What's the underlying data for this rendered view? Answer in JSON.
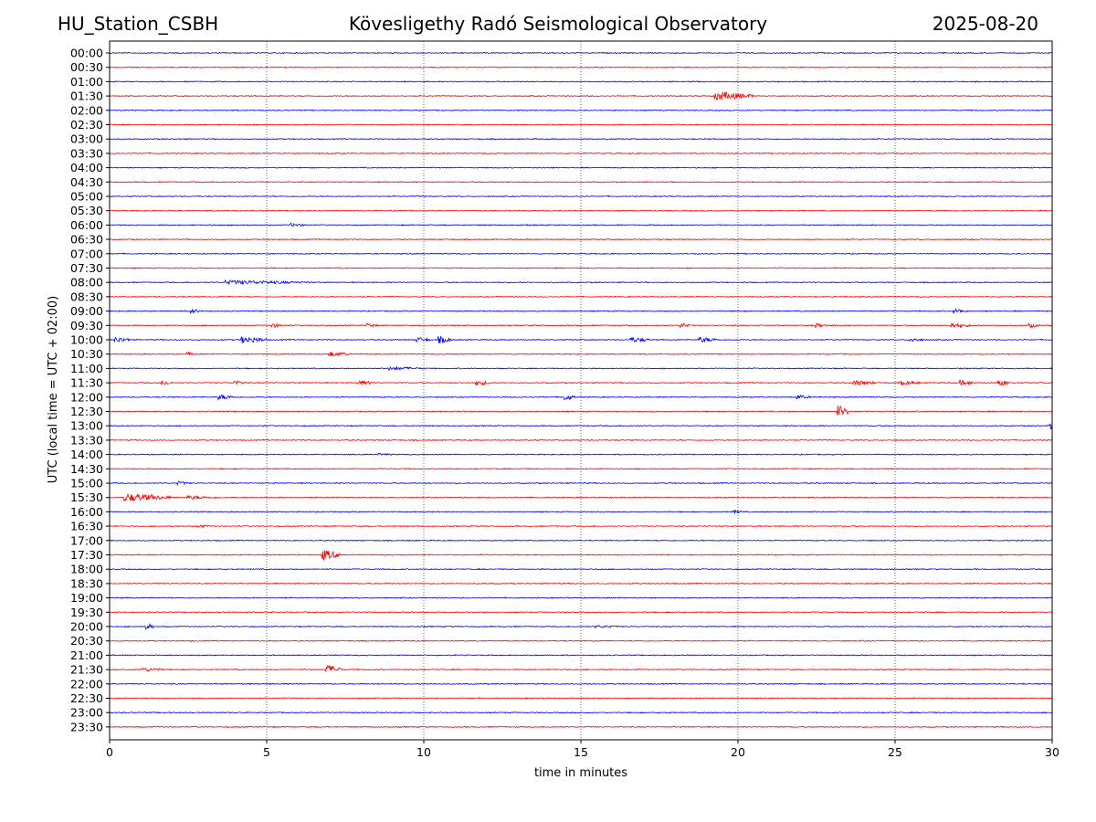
{
  "header": {
    "station": "HU_Station_CSBH",
    "observatory": "Kövesligethy Radó Seismological Observatory",
    "date": "2025-08-20"
  },
  "chart_data": {
    "type": "line",
    "xlabel": "time in minutes",
    "ylabel": "UTC (local time = UTC + 02:00)",
    "xlim": [
      0,
      30
    ],
    "xticks": [
      "0",
      "5",
      "10",
      "15",
      "20",
      "25",
      "30"
    ],
    "grid": "vertical dotted lines at every 5 minutes",
    "row_labels": [
      "00:00",
      "00:30",
      "01:00",
      "01:30",
      "02:00",
      "02:30",
      "03:00",
      "03:30",
      "04:00",
      "04:30",
      "05:00",
      "05:30",
      "06:00",
      "06:30",
      "07:00",
      "07:30",
      "08:00",
      "08:30",
      "09:00",
      "09:30",
      "10:00",
      "10:30",
      "11:00",
      "11:30",
      "12:00",
      "12:30",
      "13:00",
      "13:30",
      "14:00",
      "14:30",
      "15:00",
      "15:30",
      "16:00",
      "16:30",
      "17:00",
      "17:30",
      "18:00",
      "18:30",
      "19:00",
      "19:30",
      "20:00",
      "20:30",
      "21:00",
      "21:30",
      "22:00",
      "22:30",
      "23:00",
      "23:30"
    ],
    "trace_colors": [
      "#0000ff",
      "#ff0000"
    ],
    "events": [
      {
        "row": "01:30",
        "t": 19.3,
        "amp": 5,
        "dur": 1.2
      },
      {
        "row": "06:00",
        "t": 5.8,
        "amp": 2,
        "dur": 0.5
      },
      {
        "row": "08:00",
        "t": 3.7,
        "amp": 2.5,
        "dur": 2.8
      },
      {
        "row": "09:00",
        "t": 2.6,
        "amp": 2.5,
        "dur": 0.3
      },
      {
        "row": "09:00",
        "t": 26.9,
        "amp": 2.5,
        "dur": 0.4
      },
      {
        "row": "09:30",
        "t": 5.2,
        "amp": 2.5,
        "dur": 0.3
      },
      {
        "row": "09:30",
        "t": 8.2,
        "amp": 2.5,
        "dur": 0.3
      },
      {
        "row": "09:30",
        "t": 18.2,
        "amp": 2.5,
        "dur": 0.3
      },
      {
        "row": "09:30",
        "t": 22.5,
        "amp": 2.5,
        "dur": 0.3
      },
      {
        "row": "09:30",
        "t": 26.8,
        "amp": 3,
        "dur": 0.6
      },
      {
        "row": "09:30",
        "t": 29.3,
        "amp": 2.5,
        "dur": 0.3
      },
      {
        "row": "10:00",
        "t": 0.2,
        "amp": 3,
        "dur": 0.5
      },
      {
        "row": "10:00",
        "t": 4.2,
        "amp": 4,
        "dur": 0.8
      },
      {
        "row": "10:00",
        "t": 9.8,
        "amp": 3,
        "dur": 0.4
      },
      {
        "row": "10:00",
        "t": 10.5,
        "amp": 4,
        "dur": 0.4
      },
      {
        "row": "10:00",
        "t": 16.6,
        "amp": 3,
        "dur": 0.6
      },
      {
        "row": "10:00",
        "t": 18.8,
        "amp": 3,
        "dur": 0.6
      },
      {
        "row": "10:00",
        "t": 25.5,
        "amp": 2.5,
        "dur": 0.4
      },
      {
        "row": "10:30",
        "t": 2.5,
        "amp": 2,
        "dur": 0.3
      },
      {
        "row": "10:30",
        "t": 7.0,
        "amp": 3,
        "dur": 0.6
      },
      {
        "row": "11:00",
        "t": 8.9,
        "amp": 2,
        "dur": 1.2
      },
      {
        "row": "11:30",
        "t": 1.7,
        "amp": 3,
        "dur": 0.3
      },
      {
        "row": "11:30",
        "t": 4.0,
        "amp": 2.5,
        "dur": 0.3
      },
      {
        "row": "11:30",
        "t": 7.9,
        "amp": 3,
        "dur": 0.5
      },
      {
        "row": "11:30",
        "t": 11.7,
        "amp": 3,
        "dur": 0.4
      },
      {
        "row": "11:30",
        "t": 23.7,
        "amp": 3,
        "dur": 0.7
      },
      {
        "row": "11:30",
        "t": 25.2,
        "amp": 2.5,
        "dur": 0.6
      },
      {
        "row": "11:30",
        "t": 27.1,
        "amp": 3,
        "dur": 0.4
      },
      {
        "row": "11:30",
        "t": 28.3,
        "amp": 4,
        "dur": 0.3
      },
      {
        "row": "12:00",
        "t": 3.5,
        "amp": 3,
        "dur": 0.5
      },
      {
        "row": "12:00",
        "t": 14.5,
        "amp": 3.5,
        "dur": 0.3
      },
      {
        "row": "12:00",
        "t": 21.9,
        "amp": 2.5,
        "dur": 0.4
      },
      {
        "row": "12:30",
        "t": 23.2,
        "amp": 7,
        "dur": 0.3
      },
      {
        "row": "13:00",
        "t": 29.9,
        "amp": 5,
        "dur": 0.1
      },
      {
        "row": "14:00",
        "t": 8.6,
        "amp": 1.5,
        "dur": 0.4
      },
      {
        "row": "15:00",
        "t": 2.2,
        "amp": 2,
        "dur": 0.4
      },
      {
        "row": "15:30",
        "t": 0.5,
        "amp": 4.5,
        "dur": 1.5
      },
      {
        "row": "15:30",
        "t": 2.5,
        "amp": 2,
        "dur": 1.1
      },
      {
        "row": "16:00",
        "t": 19.9,
        "amp": 2,
        "dur": 0.3
      },
      {
        "row": "16:30",
        "t": 2.8,
        "amp": 2,
        "dur": 0.4
      },
      {
        "row": "17:30",
        "t": 6.8,
        "amp": 6,
        "dur": 0.5
      },
      {
        "row": "20:00",
        "t": 1.2,
        "amp": 3.5,
        "dur": 0.2
      },
      {
        "row": "20:00",
        "t": 15.5,
        "amp": 1.5,
        "dur": 0.8
      },
      {
        "row": "21:30",
        "t": 1.0,
        "amp": 2.5,
        "dur": 0.7
      },
      {
        "row": "21:30",
        "t": 6.9,
        "amp": 5,
        "dur": 0.5
      }
    ]
  }
}
